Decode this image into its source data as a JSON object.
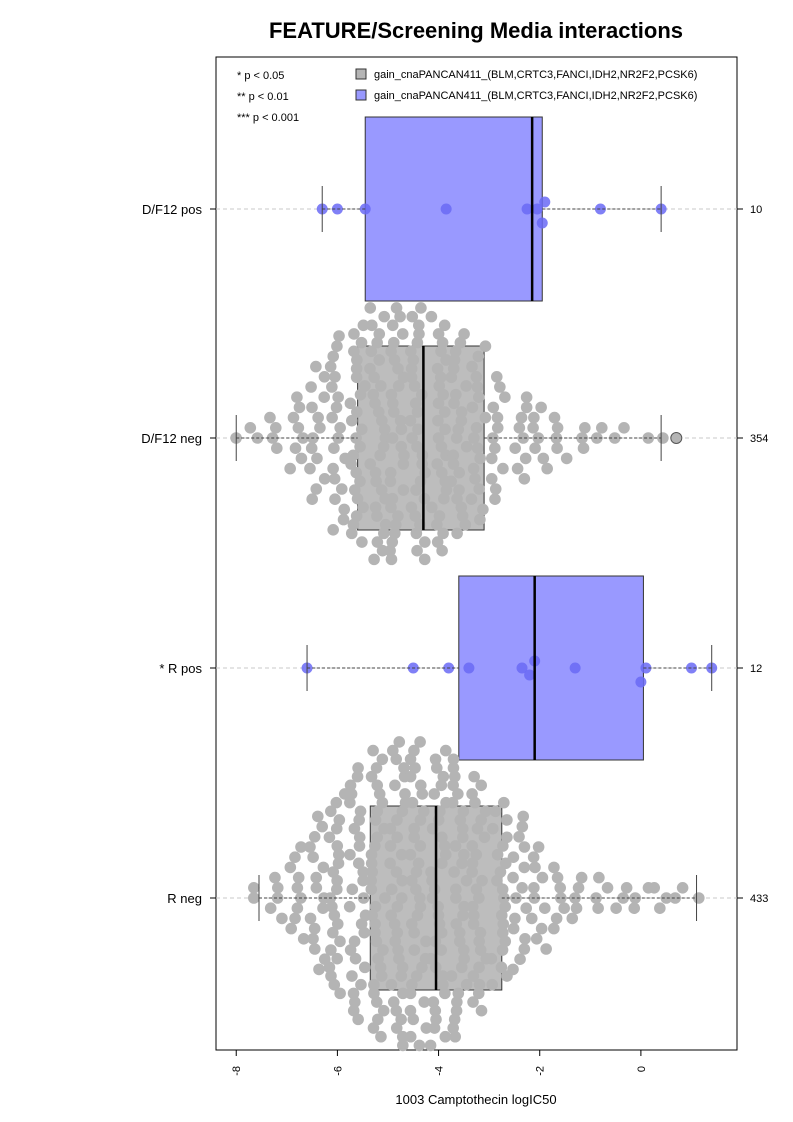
{
  "chart_data": {
    "type": "boxplot-beeswarm",
    "title": "FEATURE/Screening Media interactions",
    "xlabel": "1003 Camptothecin logIC50",
    "xlim": [
      -8.4,
      1.9
    ],
    "x_ticks": [
      -8,
      -6,
      -4,
      -2,
      0
    ],
    "x_tick_labels": [
      "-8",
      "-6",
      "-4",
      "-2",
      "0"
    ],
    "significance_legend": [
      "* p < 0.05",
      "** p < 0.01",
      "*** p < 0.001"
    ],
    "legend": [
      {
        "label": "gain_cnaPANCAN411_(BLM,CRTC3,FANCI,IDH2,NR2F2,PCSK6)",
        "color": "#b4b4b4"
      },
      {
        "label": "gain_cnaPANCAN411_(BLM,CRTC3,FANCI,IDH2,NR2F2,PCSK6)",
        "color": "#9999ff"
      }
    ],
    "groups": [
      {
        "label": "D/F12 pos",
        "n": "10",
        "color": "#9999ff",
        "point_color": "#6a6af5",
        "box": {
          "q1": -5.45,
          "median": -2.15,
          "q3": -1.95,
          "whisker_low": -6.3,
          "whisker_high": 0.4
        },
        "values": [
          -6.3,
          -6.0,
          -5.45,
          -3.85,
          -2.25,
          -2.05,
          -1.95,
          -1.9,
          -0.8,
          0.4
        ]
      },
      {
        "label": "D/F12 neg",
        "n": "354",
        "color": "#bdbdbd",
        "point_color": "#b4b4b4",
        "box": {
          "q1": -5.6,
          "median": -4.3,
          "q3": -3.1,
          "whisker_low": -8.0,
          "whisker_high": 0.4
        },
        "outliers": [
          0.7
        ],
        "density": [
          [
            -8.0,
            1
          ],
          [
            -7.6,
            2
          ],
          [
            -7.2,
            4
          ],
          [
            -6.8,
            8
          ],
          [
            -6.4,
            14
          ],
          [
            -6.0,
            20
          ],
          [
            -5.6,
            26
          ],
          [
            -5.2,
            30
          ],
          [
            -4.8,
            30
          ],
          [
            -4.4,
            30
          ],
          [
            -4.0,
            28
          ],
          [
            -3.6,
            24
          ],
          [
            -3.2,
            18
          ],
          [
            -2.8,
            13
          ],
          [
            -2.4,
            9
          ],
          [
            -2.0,
            7
          ],
          [
            -1.6,
            5
          ],
          [
            -1.2,
            3
          ],
          [
            -0.8,
            2
          ],
          [
            -0.4,
            2
          ],
          [
            0.0,
            1
          ],
          [
            0.4,
            1
          ]
        ]
      },
      {
        "label": "* R pos",
        "n": "12",
        "color": "#9999ff",
        "point_color": "#6a6af5",
        "box": {
          "q1": -3.6,
          "median": -2.1,
          "q3": 0.05,
          "whisker_low": -6.6,
          "whisker_high": 1.4
        },
        "values": [
          -6.6,
          -4.5,
          -3.8,
          -3.4,
          -2.35,
          -2.2,
          -2.1,
          -1.3,
          0.1,
          0.0,
          1.0,
          1.4
        ]
      },
      {
        "label": "R neg",
        "n": "433",
        "color": "#bdbdbd",
        "point_color": "#b4b4b4",
        "box": {
          "q1": -5.35,
          "median": -4.05,
          "q3": -2.75,
          "whisker_low": -7.55,
          "whisker_high": 1.1
        },
        "density": [
          [
            -7.6,
            2
          ],
          [
            -7.2,
            5
          ],
          [
            -6.8,
            10
          ],
          [
            -6.4,
            16
          ],
          [
            -6.0,
            24
          ],
          [
            -5.6,
            30
          ],
          [
            -5.2,
            34
          ],
          [
            -4.8,
            36
          ],
          [
            -4.4,
            36
          ],
          [
            -4.0,
            35
          ],
          [
            -3.6,
            33
          ],
          [
            -3.2,
            28
          ],
          [
            -2.8,
            22
          ],
          [
            -2.4,
            16
          ],
          [
            -2.0,
            11
          ],
          [
            -1.6,
            7
          ],
          [
            -1.2,
            5
          ],
          [
            -0.8,
            4
          ],
          [
            -0.4,
            3
          ],
          [
            0.0,
            3
          ],
          [
            0.4,
            3
          ],
          [
            0.8,
            2
          ],
          [
            1.1,
            1
          ]
        ]
      }
    ]
  }
}
